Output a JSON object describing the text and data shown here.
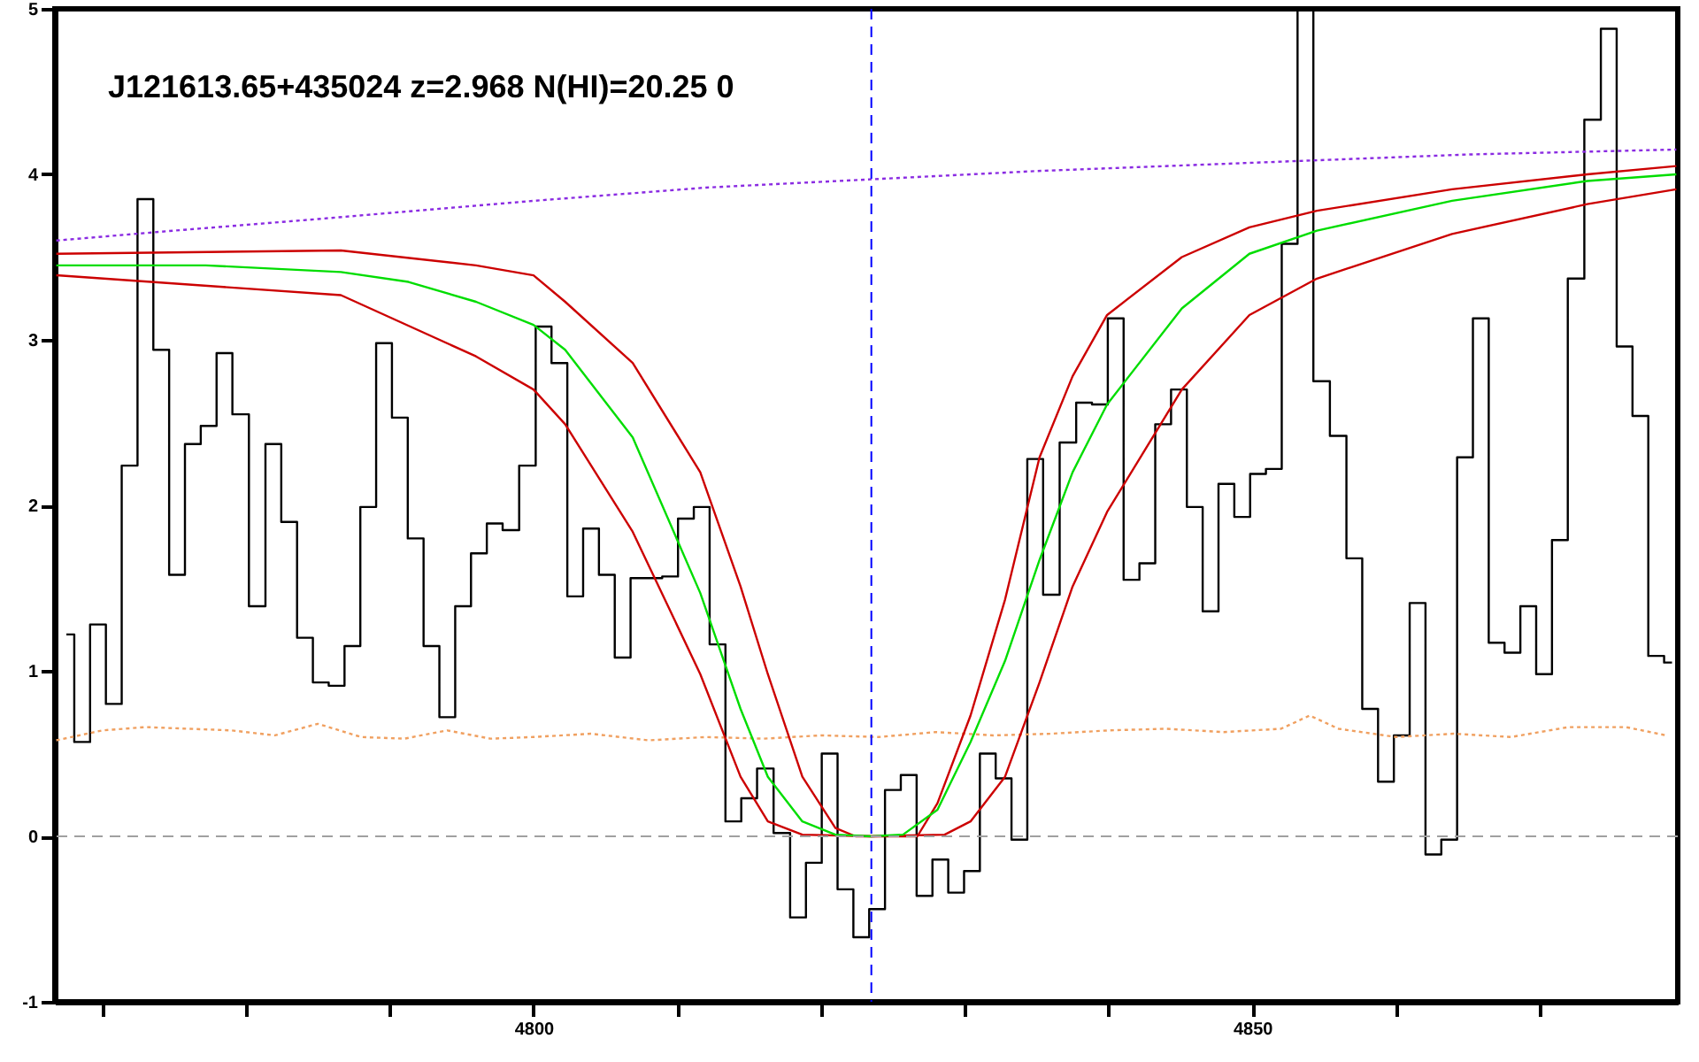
{
  "chart_data": {
    "type": "line",
    "title": "J121613.65+435024 z=2.968 N(HI)=20.25 0",
    "xlim": [
      4766.7,
      4879.6
    ],
    "ylim": [
      -1,
      5
    ],
    "xticks": [
      {
        "value": 4770,
        "label": null
      },
      {
        "value": 4780,
        "label": null
      },
      {
        "value": 4790,
        "label": null
      },
      4800,
      {
        "value": 4810,
        "label": null
      },
      {
        "value": 4820,
        "label": null
      },
      {
        "value": 4830,
        "label": null
      },
      {
        "value": 4840,
        "label": null
      },
      4850,
      {
        "value": 4860,
        "label": null
      },
      {
        "value": 4870,
        "label": null
      }
    ],
    "yticks": [
      -1,
      0,
      1,
      2,
      3,
      4,
      5
    ],
    "grid": false,
    "marker": "none",
    "ref_lines": [
      {
        "axis": "x",
        "value": 4823.5,
        "color": "#0000ff",
        "line_style": "dashed"
      },
      {
        "axis": "y",
        "value": 0,
        "color": "#a0a0a0",
        "line_style": "dashed"
      }
    ],
    "series": [
      {
        "type": "step",
        "color": "#000000",
        "line_style": "solid",
        "x": [
          4767.5,
          4768.6,
          4769.7,
          4770.8,
          4771.9,
          4773.0,
          4774.1,
          4775.2,
          4776.3,
          4777.4,
          4778.5,
          4779.6,
          4780.8,
          4781.9,
          4783.0,
          4784.1,
          4785.2,
          4786.3,
          4787.4,
          4788.5,
          4789.6,
          4790.7,
          4791.8,
          4792.9,
          4794.0,
          4795.1,
          4796.2,
          4797.3,
          4798.4,
          4799.6,
          4800.7,
          4801.8,
          4802.9,
          4804.0,
          4805.1,
          4806.2,
          4807.3,
          4808.4,
          4809.5,
          4810.6,
          4811.7,
          4812.8,
          4813.9,
          4815.0,
          4816.1,
          4817.3,
          4818.4,
          4819.5,
          4820.6,
          4821.7,
          4822.8,
          4823.9,
          4825.0,
          4826.1,
          4827.2,
          4828.3,
          4829.4,
          4830.5,
          4831.6,
          4832.7,
          4833.8,
          4834.9,
          4836.0,
          4837.2,
          4838.3,
          4839.4,
          4840.5,
          4841.6,
          4842.7,
          4843.8,
          4844.9,
          4846.0,
          4847.1,
          4848.2,
          4849.3,
          4850.4,
          4851.5,
          4852.6,
          4853.7,
          4854.8,
          4856.0,
          4857.1,
          4858.2,
          4859.3,
          4860.4,
          4861.5,
          4862.6,
          4863.7,
          4864.8,
          4865.9,
          4867.0,
          4868.1,
          4869.2,
          4870.3,
          4871.4,
          4872.5,
          4873.7,
          4874.8,
          4875.9,
          4877.0,
          4878.1,
          4879.2
        ],
        "values": [
          1.22,
          0.57,
          1.28,
          0.8,
          2.24,
          3.85,
          2.94,
          1.58,
          2.37,
          2.48,
          2.92,
          2.55,
          1.39,
          2.37,
          1.9,
          1.2,
          0.93,
          0.91,
          1.15,
          1.99,
          2.98,
          2.53,
          1.8,
          1.15,
          0.72,
          1.39,
          1.71,
          1.89,
          1.85,
          2.24,
          3.08,
          2.86,
          1.45,
          1.86,
          1.58,
          1.08,
          1.56,
          1.56,
          1.57,
          1.92,
          1.99,
          1.16,
          0.09,
          0.23,
          0.41,
          0.02,
          -0.49,
          -0.16,
          0.5,
          -0.32,
          -0.61,
          -0.44,
          0.28,
          0.37,
          -0.36,
          -0.14,
          -0.34,
          -0.21,
          0.5,
          0.35,
          -0.02,
          2.28,
          1.46,
          2.38,
          2.62,
          2.61,
          3.13,
          1.55,
          1.65,
          2.49,
          2.7,
          1.99,
          1.36,
          2.13,
          1.93,
          2.19,
          2.22,
          3.58,
          5,
          2.75,
          2.42,
          1.68,
          0.77,
          0.33,
          0.61,
          1.41,
          -0.11,
          -0.02,
          2.29,
          3.13,
          1.17,
          1.11,
          1.39,
          0.98,
          1.79,
          3.37,
          4.33,
          4.88,
          2.96,
          2.54,
          1.09,
          1.05
        ]
      },
      {
        "type": "line",
        "color": "#8a2be2",
        "line_style": "dotted",
        "x": [
          4766.8,
          4775,
          4785,
          4800,
          4812,
          4823.5,
          4835,
          4850,
          4865,
          4879.5
        ],
        "values": [
          3.6,
          3.66,
          3.73,
          3.84,
          3.92,
          3.97,
          4.02,
          4.07,
          4.12,
          4.15
        ]
      },
      {
        "type": "line",
        "color": "#f0a060",
        "line_style": "dotted",
        "x": [
          4766.8,
          4770,
          4773,
          4776,
          4779,
          4782,
          4785,
          4788,
          4791,
          4794,
          4797,
          4800,
          4804,
          4808,
          4812,
          4816,
          4820,
          4824,
          4828,
          4832,
          4836,
          4840,
          4844,
          4848,
          4852,
          4854,
          4856,
          4860,
          4864,
          4868,
          4872,
          4876,
          4878.8
        ],
        "values": [
          0.58,
          0.64,
          0.66,
          0.65,
          0.64,
          0.61,
          0.68,
          0.6,
          0.59,
          0.64,
          0.59,
          0.6,
          0.62,
          0.58,
          0.6,
          0.59,
          0.61,
          0.6,
          0.63,
          0.61,
          0.62,
          0.64,
          0.65,
          0.63,
          0.65,
          0.73,
          0.65,
          0.6,
          0.62,
          0.6,
          0.66,
          0.66,
          0.61
        ]
      },
      {
        "type": "line",
        "color": "#cc0000",
        "line_style": "solid",
        "x": [
          4766.8,
          4786.6,
          4796.0,
          4800,
          4802.2,
          4806.9,
          4811.6,
          4814.4,
          4816.3,
          4818.7,
          4821.0,
          4822.4,
          4826.7,
          4828.1,
          4830.4,
          4832.8,
          4835.2,
          4837.5,
          4839.9,
          4845.1,
          4849.8,
          4854.5,
          4863.9,
          4873.3,
          4879.5
        ],
        "values": [
          3.52,
          3.54,
          3.45,
          3.39,
          3.23,
          2.86,
          2.2,
          1.51,
          0.98,
          0.36,
          0.05,
          0,
          0,
          0.2,
          0.73,
          1.43,
          2.29,
          2.78,
          3.15,
          3.5,
          3.68,
          3.78,
          3.91,
          4.0,
          4.05
        ]
      },
      {
        "type": "line",
        "color": "#cc0000",
        "line_style": "solid",
        "x": [
          4766.8,
          4786.6,
          4796.0,
          4800,
          4802.2,
          4806.9,
          4811.6,
          4814.4,
          4816.3,
          4818.7,
          4823.5,
          4828.6,
          4830.4,
          4832.8,
          4835.2,
          4837.5,
          4839.9,
          4845.1,
          4849.8,
          4854.5,
          4863.9,
          4873.3,
          4879.5
        ],
        "values": [
          3.39,
          3.27,
          2.9,
          2.7,
          2.49,
          1.84,
          0.98,
          0.36,
          0.09,
          0.01,
          0,
          0.01,
          0.09,
          0.36,
          0.93,
          1.51,
          1.96,
          2.7,
          3.15,
          3.37,
          3.64,
          3.82,
          3.91
        ]
      },
      {
        "type": "line",
        "color": "#00dd00",
        "line_style": "solid",
        "x": [
          4766.8,
          4777.2,
          4786.6,
          4791.3,
          4796.0,
          4800,
          4802.2,
          4806.9,
          4811.6,
          4814.4,
          4816.3,
          4818.7,
          4821.0,
          4823.5,
          4825.7,
          4828.1,
          4830.4,
          4832.8,
          4835.2,
          4837.5,
          4839.9,
          4845.1,
          4849.8,
          4854.5,
          4863.9,
          4873.3,
          4879.5
        ],
        "values": [
          3.45,
          3.45,
          3.41,
          3.35,
          3.23,
          3.09,
          2.94,
          2.41,
          1.47,
          0.77,
          0.36,
          0.09,
          0.01,
          0,
          0.01,
          0.16,
          0.57,
          1.06,
          1.67,
          2.2,
          2.61,
          3.19,
          3.52,
          3.66,
          3.84,
          3.96,
          4.0
        ]
      }
    ]
  }
}
